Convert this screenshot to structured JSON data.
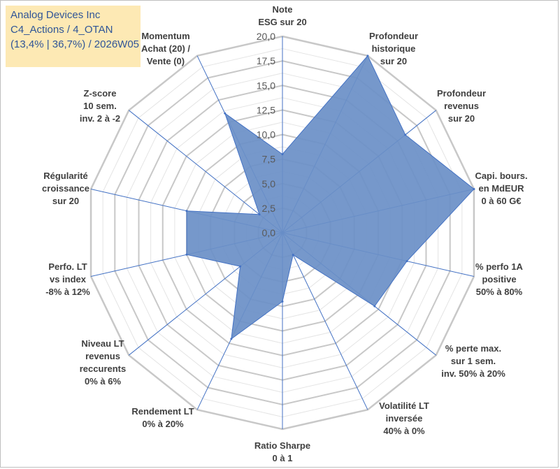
{
  "title_box": {
    "line1": "Analog Devices Inc",
    "line2": "C4_Actions / 4_OTAN",
    "line3": "(13,4% | 36,7%) / 2026W05"
  },
  "colors": {
    "fill": "#6a8fc7",
    "stroke": "#4472c4",
    "grid": "#c8c8c8",
    "title_bg": "#fde9b4",
    "title_text": "#2f5597"
  },
  "chart_data": {
    "type": "radar",
    "title": "",
    "rmin": 0,
    "rmax": 20,
    "ticks": [
      "0,0",
      "2,5",
      "5,0",
      "7,5",
      "10,0",
      "12,5",
      "15,0",
      "17,5",
      "20,0"
    ],
    "axes": [
      {
        "label": [
          "Note",
          "ESG sur 20"
        ],
        "value": 8.0
      },
      {
        "label": [
          "Profondeur",
          "historique",
          "sur 20"
        ],
        "value": 20.0
      },
      {
        "label": [
          "Profondeur",
          "revenus",
          "sur 20"
        ],
        "value": 16.0
      },
      {
        "label": [
          "Capi. bours.",
          "en MdEUR",
          "0 à 60 G€"
        ],
        "value": 20.0
      },
      {
        "label": [
          "% perfo 1A",
          "positive",
          "50% à 80%"
        ],
        "value": 13.0
      },
      {
        "label": [
          "% perte max.",
          "sur 1 sem.",
          "inv. 50% à 20%"
        ],
        "value": 12.0
      },
      {
        "label": [
          "Volatilité LT",
          "inversée",
          "40% à 0%"
        ],
        "value": 2.5
      },
      {
        "label": [
          "Ratio Sharpe",
          "0 à 1"
        ],
        "value": 7.0
      },
      {
        "label": [
          "Rendement LT",
          "0% à 20%"
        ],
        "value": 12.0
      },
      {
        "label": [
          "Niveau LT",
          "revenus",
          "reccurents",
          "0% à 6%"
        ],
        "value": 5.5
      },
      {
        "label": [
          "Perfo. LT",
          "vs index",
          "-8% à 12%"
        ],
        "value": 10.0
      },
      {
        "label": [
          "Régularité",
          "croissance",
          "sur 20"
        ],
        "value": 10.0
      },
      {
        "label": [
          "Z-score",
          "10 sem.",
          "inv. 2 à -2"
        ],
        "value": 3.0
      },
      {
        "label": [
          "Momentum",
          "Achat (20) /",
          "Vente (0)"
        ],
        "value": 13.5
      }
    ]
  }
}
